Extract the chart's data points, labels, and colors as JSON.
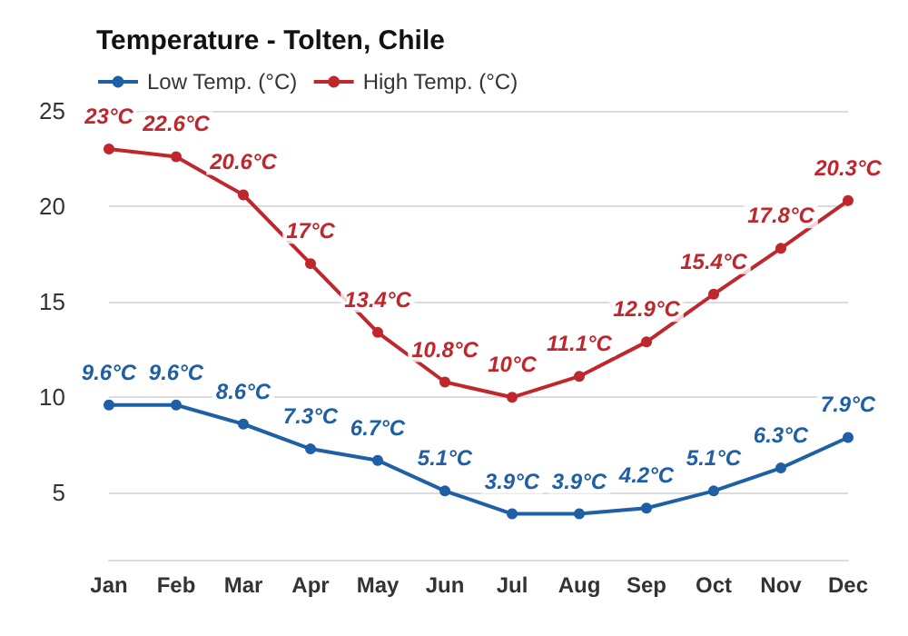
{
  "chart_data": {
    "type": "line",
    "title": "Temperature - Tolten, Chile",
    "categories": [
      "Jan",
      "Feb",
      "Mar",
      "Apr",
      "May",
      "Jun",
      "Jul",
      "Aug",
      "Sep",
      "Oct",
      "Nov",
      "Dec"
    ],
    "series": [
      {
        "name": "Low Temp. (°C)",
        "color": "#1f5fa6",
        "values": [
          9.6,
          9.6,
          8.6,
          7.3,
          6.7,
          5.1,
          3.9,
          3.9,
          4.2,
          5.1,
          6.3,
          7.9
        ],
        "value_labels": [
          "9.6°C",
          "9.6°C",
          "8.6°C",
          "7.3°C",
          "6.7°C",
          "5.1°C",
          "3.9°C",
          "3.9°C",
          "4.2°C",
          "5.1°C",
          "6.3°C",
          "7.9°C"
        ]
      },
      {
        "name": "High Temp. (°C)",
        "color": "#c0272d",
        "values": [
          23,
          22.6,
          20.6,
          17,
          13.4,
          10.8,
          10,
          11.1,
          12.9,
          15.4,
          17.8,
          20.3
        ],
        "value_labels": [
          "23°C",
          "22.6°C",
          "20.6°C",
          "17°C",
          "13.4°C",
          "10.8°C",
          "10°C",
          "11.1°C",
          "12.9°C",
          "15.4°C",
          "17.8°C",
          "20.3°C"
        ]
      }
    ],
    "ylim": [
      1.5,
      25
    ],
    "yticks": [
      5,
      10,
      15,
      20,
      25
    ],
    "grid": "y",
    "legend": "top left",
    "marker": "circle",
    "line_style": "solid"
  }
}
